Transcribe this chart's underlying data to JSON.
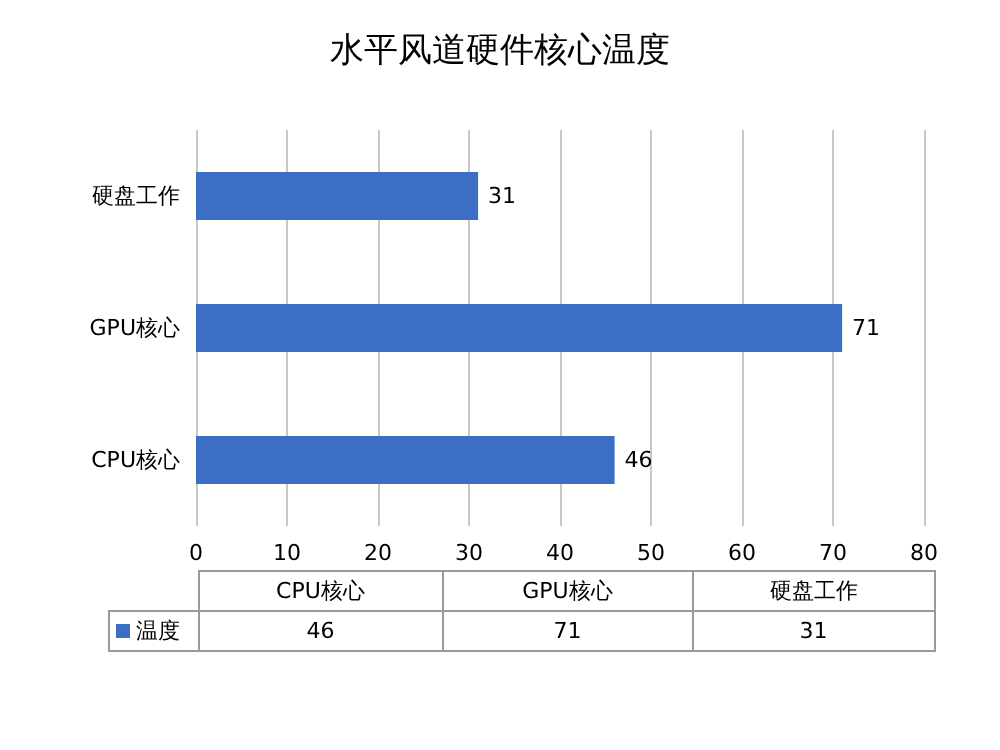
{
  "chart_data": {
    "type": "bar",
    "orientation": "horizontal",
    "title": "水平风道硬件核心温度",
    "categories": [
      "硬盘工作",
      "GPU核心",
      "CPU核心"
    ],
    "series": [
      {
        "name": "温度",
        "color": "#3b6ec4",
        "values": [
          31,
          71,
          46
        ]
      }
    ],
    "annotations": [
      "46",
      "71",
      "31"
    ],
    "xlim": [
      0,
      80
    ],
    "xticks": [
      0,
      10,
      20,
      30,
      40,
      50,
      60,
      70,
      80
    ],
    "grid": "x",
    "data_labels": true,
    "legend": "bottom"
  }
}
